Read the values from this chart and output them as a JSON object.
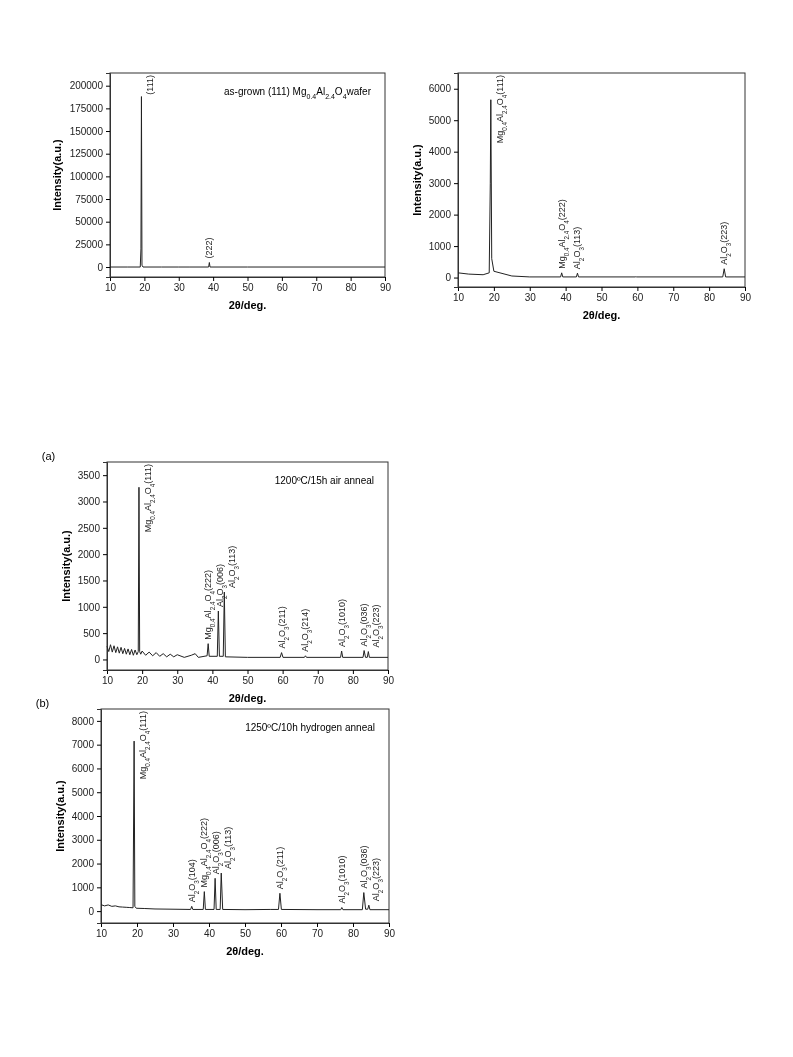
{
  "chart_data": [
    {
      "type": "line",
      "xlabel": "2θ/deg.",
      "ylabel": "Intensity(a.u.)",
      "xlim": [
        10,
        90
      ],
      "xticks": [
        10,
        20,
        30,
        40,
        50,
        60,
        70,
        80,
        90
      ],
      "ylim": [
        -11000,
        214000
      ],
      "yticks": [
        0,
        25000,
        50000,
        75000,
        100000,
        125000,
        150000,
        175000,
        200000
      ],
      "x": [
        10,
        15,
        18.8,
        19.0,
        19.15,
        19.3,
        19.6,
        25,
        30,
        33,
        38.7,
        38.9,
        39.1,
        50,
        90
      ],
      "series": [
        {
          "color": "#222222",
          "values": [
            0,
            0,
            0,
            20000,
            188000,
            2000,
            0,
            0,
            0,
            0,
            0,
            5000,
            0,
            0,
            0
          ]
        }
      ],
      "annotations": [
        "as-grown (111) Mg$_{0.4}$Al$_{2.4}$O$_{4}$wafer",
        {
          "text": "(111)",
          "x": 19.15,
          "y": 188000
        },
        {
          "text": "(222)",
          "x": 38.9,
          "y": 5000
        }
      ]
    },
    {
      "type": "line",
      "xlabel": "2θ/deg.",
      "ylabel": "Intensity(a.u.)",
      "xlim": [
        10,
        90
      ],
      "xticks": [
        10,
        20,
        30,
        40,
        50,
        60,
        70,
        80,
        90
      ],
      "ylim": [
        -300,
        6500
      ],
      "yticks": [
        0,
        1000,
        2000,
        3000,
        4000,
        5000,
        6000
      ],
      "x": [
        10,
        13,
        17,
        18.7,
        19.0,
        19.15,
        19.4,
        20,
        25,
        30,
        38.6,
        38.9,
        39.2,
        43,
        43.3,
        43.6,
        59.4,
        59.6,
        59.8,
        83.8,
        84.2,
        84.6,
        90
      ],
      "series": [
        {
          "color": "#222222",
          "values": [
            150,
            110,
            90,
            150,
            3000,
            5650,
            600,
            200,
            50,
            20,
            20,
            150,
            20,
            20,
            140,
            20,
            20,
            30,
            20,
            20,
            280,
            20,
            20
          ]
        }
      ],
      "annotations": [
        {
          "text": "Mg$_{0.4}$Al$_{2.4}$O$_{4}$(111)",
          "x": 19.15,
          "y": 5650
        },
        {
          "text": "Mg$_{0.4}$Al$_{2.4}$O$_{4}$(222)",
          "x": 38.9,
          "y": 150
        },
        {
          "text": "Al$_{2}$O$_{3}$(113)",
          "x": 43.3,
          "y": 140
        },
        {
          "text": "Al$_{2}$O$_{3}$(223)",
          "x": 84.2,
          "y": 280
        }
      ]
    },
    {
      "type": "line",
      "title": "(a)",
      "xlabel": "2θ/deg.",
      "ylabel": "Intensity(a.u.)",
      "xlim": [
        10,
        90
      ],
      "xticks": [
        10,
        20,
        30,
        40,
        50,
        60,
        70,
        80,
        90
      ],
      "ylim": [
        -200,
        3750
      ],
      "yticks": [
        0,
        500,
        1000,
        1500,
        2000,
        2500,
        3000,
        3500
      ],
      "x": [
        10,
        10.5,
        11,
        11.5,
        12,
        12.5,
        13,
        13.5,
        14,
        14.5,
        15,
        15.5,
        16,
        16.5,
        17,
        17.5,
        18,
        18.5,
        18.9,
        19.1,
        19.3,
        19.6,
        20,
        21,
        22,
        23,
        24,
        25,
        26,
        27,
        28,
        29,
        30,
        32,
        34,
        35.1,
        36,
        38.5,
        38.8,
        39.1,
        41.4,
        41.7,
        42,
        43.1,
        43.4,
        43.7,
        50,
        59.3,
        59.7,
        60.1,
        66.2,
        66.5,
        66.8,
        76.5,
        76.8,
        77.1,
        82.9,
        83.2,
        83.6,
        84.1,
        84.4,
        84.7,
        90
      ],
      "series": [
        {
          "color": "#222222",
          "values": [
            250,
            150,
            280,
            140,
            260,
            130,
            240,
            120,
            230,
            110,
            210,
            100,
            200,
            90,
            190,
            80,
            180,
            90,
            150,
            3270,
            150,
            100,
            160,
            80,
            140,
            70,
            130,
            60,
            110,
            50,
            100,
            50,
            90,
            40,
            80,
            110,
            40,
            70,
            300,
            60,
            60,
            920,
            60,
            60,
            1280,
            50,
            40,
            40,
            130,
            40,
            40,
            70,
            40,
            40,
            160,
            40,
            40,
            170,
            40,
            40,
            150,
            40,
            40
          ]
        }
      ],
      "annotations": [
        "1200ºC/15h air anneal",
        {
          "text": "Mg$_{0.4}$Al$_{2.4}$O$_{4}$(111)",
          "x": 19.1,
          "y": 3270
        },
        {
          "text": "Mg$_{0.4}$Al$_{2.4}$O$_{4}$(222)",
          "x": 38.8,
          "y": 300
        },
        {
          "text": "Al$_{2}$O$_{3}$(006)",
          "x": 41.7,
          "y": 920
        },
        {
          "text": "Al$_{2}$O$_{3}$(113)",
          "x": 43.4,
          "y": 1280
        },
        {
          "text": "Al$_{2}$O$_{3}$(211)",
          "x": 59.7,
          "y": 130
        },
        {
          "text": "Al$_{2}$O$_{3}$(214)",
          "x": 66.5,
          "y": 70
        },
        {
          "text": "Al$_{2}$O$_{3}$(1010)",
          "x": 76.8,
          "y": 160
        },
        {
          "text": "Al$_{2}$O$_{3}$(036)",
          "x": 83.2,
          "y": 170
        },
        {
          "text": "Al$_{2}$O$_{3}$(223)",
          "x": 84.4,
          "y": 150
        }
      ]
    },
    {
      "type": "line",
      "title": "(b)",
      "xlabel": "2θ/deg.",
      "ylabel": "Intensity(a.u.)",
      "xlim": [
        10,
        90
      ],
      "xticks": [
        10,
        20,
        30,
        40,
        50,
        60,
        70,
        80,
        90
      ],
      "ylim": [
        -500,
        8500
      ],
      "yticks": [
        0,
        1000,
        2000,
        3000,
        4000,
        5000,
        6000,
        7000,
        8000
      ],
      "x": [
        10,
        11,
        12,
        13,
        14,
        15,
        16,
        17,
        18,
        18.9,
        19.2,
        19.4,
        19.8,
        22,
        25,
        30,
        34.9,
        35.2,
        35.5,
        38.4,
        38.7,
        39,
        41.4,
        41.7,
        42,
        43.1,
        43.4,
        43.8,
        50,
        57,
        59.3,
        59.7,
        60.1,
        70,
        76.6,
        76.9,
        77.2,
        82.6,
        83,
        83.5,
        84.1,
        84.4,
        84.7,
        90
      ],
      "series": [
        {
          "color": "#222222",
          "values": [
            270,
            220,
            260,
            200,
            220,
            180,
            170,
            160,
            150,
            140,
            7150,
            200,
            120,
            110,
            90,
            80,
            70,
            200,
            70,
            70,
            820,
            70,
            70,
            1380,
            70,
            70,
            1600,
            70,
            60,
            70,
            70,
            750,
            70,
            60,
            60,
            150,
            60,
            60,
            780,
            80,
            80,
            250,
            60,
            60
          ]
        }
      ],
      "annotations": [
        "1250ºC/10h hydrogen anneal",
        {
          "text": "Mg$_{0.4}$Al$_{2.4}$O$_{4}$(111)",
          "x": 19.2,
          "y": 7150
        },
        {
          "text": "Al$_{2}$O$_{3}$(104)",
          "x": 35.2,
          "y": 200
        },
        {
          "text": "Mg$_{0.4}$Al$_{2.4}$O$_{4}$(222)",
          "x": 38.7,
          "y": 820
        },
        {
          "text": "Al$_{2}$O$_{3}$(006)",
          "x": 41.7,
          "y": 1380
        },
        {
          "text": "Al$_{2}$O$_{3}$(113)",
          "x": 43.4,
          "y": 1600
        },
        {
          "text": "Al$_{2}$O$_{3}$(211)",
          "x": 59.7,
          "y": 750
        },
        {
          "text": "Al$_{2}$O$_{3}$(1010)",
          "x": 76.9,
          "y": 150
        },
        {
          "text": "Al$_{2}$O$_{3}$(036)",
          "x": 83,
          "y": 780
        },
        {
          "text": "Al$_{2}$O$_{3}$(223)",
          "x": 84.4,
          "y": 250
        }
      ]
    }
  ]
}
